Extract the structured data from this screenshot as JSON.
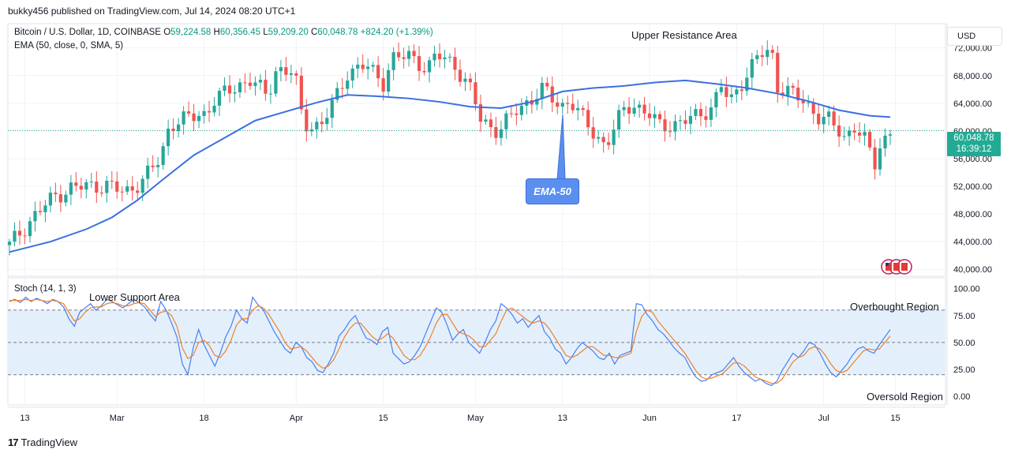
{
  "header": {
    "published": "bukky456 published on TradingView.com, Jul 14, 2024 08:20 UTC+1"
  },
  "legend": {
    "symbol": "Bitcoin / U.S. Dollar, 1D, COINBASE",
    "open_label": "O",
    "open": "59,224.58",
    "high_label": "H",
    "high": "60,356.45",
    "low_label": "L",
    "low": "59,209.20",
    "close_label": "C",
    "close": "60,048.78",
    "change": "+824.20 (+1.39%)",
    "ema_line": "EMA (50, close, 0, SMA, 5)",
    "stoch_line": "Stoch (14, 1, 3)"
  },
  "annotations": {
    "upper_resistance": "Upper Resistance Area",
    "lower_support": "Lower Support Area",
    "overbought": "Overbought Region",
    "oversold": "Oversold Region",
    "ema_callout": "EMA-50"
  },
  "currency_button": "USD",
  "price_label": {
    "price": "60,048.78",
    "countdown": "16:39:12"
  },
  "footer": {
    "brand": "TradingView",
    "brand_mark": "17"
  },
  "colors": {
    "up": "#26a69a",
    "down": "#ef5350",
    "ema": "#3a6fe2",
    "k_line": "#4a7df0",
    "d_line": "#f07f2a",
    "band": "#e3f0fc"
  },
  "chart_data": [
    {
      "type": "candlestick",
      "title": "Bitcoin / U.S. Dollar, 1D, COINBASE",
      "ylim": [
        39000,
        75500
      ],
      "y_ticks": [
        "72,000.00",
        "68,000.00",
        "64,000.00",
        "60,000.00",
        "56,000.00",
        "52,000.00",
        "48,000.00",
        "44,000.00",
        "40,000.00"
      ],
      "y_tick_values": [
        72000,
        68000,
        64000,
        60000,
        56000,
        52000,
        48000,
        44000,
        40000
      ],
      "x_tick_labels": [
        "13",
        "Mar",
        "18",
        "Apr",
        "15",
        "May",
        "13",
        "Jun",
        "17",
        "Jul",
        "15"
      ],
      "ema_series": {
        "name": "EMA-50",
        "points": [
          [
            0,
            42500
          ],
          [
            8,
            44000
          ],
          [
            15,
            45800
          ],
          [
            20,
            47500
          ],
          [
            25,
            50000
          ],
          [
            30,
            53000
          ],
          [
            36,
            56500
          ],
          [
            42,
            59000
          ],
          [
            48,
            61500
          ],
          [
            54,
            62800
          ],
          [
            60,
            64100
          ],
          [
            66,
            65200
          ],
          [
            72,
            65000
          ],
          [
            78,
            64700
          ],
          [
            84,
            64200
          ],
          [
            90,
            63500
          ],
          [
            96,
            63300
          ],
          [
            102,
            64200
          ],
          [
            108,
            65700
          ],
          [
            114,
            66200
          ],
          [
            120,
            66500
          ],
          [
            126,
            67000
          ],
          [
            132,
            67300
          ],
          [
            138,
            66800
          ],
          [
            144,
            66200
          ],
          [
            150,
            65400
          ],
          [
            156,
            64300
          ],
          [
            162,
            63000
          ],
          [
            168,
            62200
          ],
          [
            172,
            62000
          ]
        ]
      },
      "current_price": 60048.78
    },
    {
      "type": "line",
      "title": "Stoch (14, 1, 3)",
      "ylim": [
        -8,
        110
      ],
      "y_ticks": [
        "100.00",
        "75.00",
        "50.00",
        "25.00",
        "0.00"
      ],
      "y_tick_values": [
        100,
        75,
        50,
        25,
        0
      ],
      "overbought_level": 80,
      "oversold_level": 20,
      "mid_level": 50,
      "k_series": [
        88,
        90,
        87,
        92,
        88,
        91,
        89,
        86,
        90,
        88,
        83,
        72,
        65,
        78,
        82,
        86,
        80,
        84,
        90,
        88,
        85,
        82,
        86,
        90,
        87,
        83,
        76,
        70,
        88,
        80,
        68,
        55,
        30,
        20,
        45,
        62,
        48,
        38,
        28,
        40,
        55,
        65,
        80,
        72,
        68,
        92,
        85,
        80,
        70,
        60,
        52,
        44,
        40,
        50,
        46,
        36,
        32,
        24,
        22,
        30,
        40,
        56,
        62,
        70,
        75,
        64,
        54,
        52,
        48,
        60,
        64,
        40,
        35,
        30,
        32,
        38,
        46,
        58,
        70,
        82,
        78,
        66,
        52,
        58,
        62,
        50,
        45,
        40,
        50,
        62,
        70,
        86,
        82,
        76,
        68,
        72,
        64,
        70,
        75,
        60,
        54,
        44,
        40,
        30,
        36,
        44,
        50,
        46,
        42,
        36,
        34,
        40,
        30,
        38,
        40,
        42,
        86,
        85,
        76,
        70,
        62,
        58,
        52,
        45,
        40,
        36,
        26,
        18,
        14,
        15,
        20,
        22,
        24,
        30,
        36,
        28,
        22,
        18,
        14,
        16,
        12,
        10,
        14,
        24,
        32,
        40,
        36,
        42,
        50,
        48,
        40,
        30,
        22,
        18,
        24,
        30,
        38,
        44,
        46,
        42,
        40,
        48,
        55,
        62
      ],
      "d_series": [
        89,
        89,
        89,
        90,
        89,
        90,
        89,
        88,
        89,
        88,
        86,
        78,
        70,
        72,
        78,
        82,
        83,
        83,
        86,
        87,
        86,
        84,
        84,
        86,
        87,
        86,
        80,
        74,
        78,
        79,
        75,
        65,
        45,
        35,
        38,
        50,
        52,
        47,
        38,
        36,
        42,
        52,
        66,
        72,
        72,
        80,
        84,
        82,
        76,
        68,
        60,
        50,
        44,
        45,
        46,
        42,
        36,
        30,
        26,
        28,
        34,
        44,
        55,
        63,
        68,
        68,
        62,
        56,
        52,
        54,
        58,
        54,
        46,
        38,
        34,
        34,
        38,
        46,
        56,
        68,
        76,
        76,
        68,
        60,
        58,
        56,
        52,
        46,
        46,
        52,
        58,
        70,
        80,
        82,
        78,
        74,
        70,
        68,
        70,
        68,
        62,
        54,
        46,
        38,
        36,
        38,
        42,
        46,
        46,
        42,
        38,
        38,
        36,
        36,
        38,
        40,
        60,
        74,
        80,
        78,
        70,
        64,
        58,
        52,
        46,
        40,
        32,
        24,
        18,
        16,
        17,
        19,
        21,
        26,
        31,
        31,
        28,
        23,
        18,
        16,
        14,
        12,
        12,
        16,
        24,
        32,
        36,
        38,
        44,
        46,
        44,
        38,
        30,
        24,
        22,
        24,
        30,
        36,
        42,
        44,
        43,
        44,
        50,
        56
      ]
    }
  ]
}
